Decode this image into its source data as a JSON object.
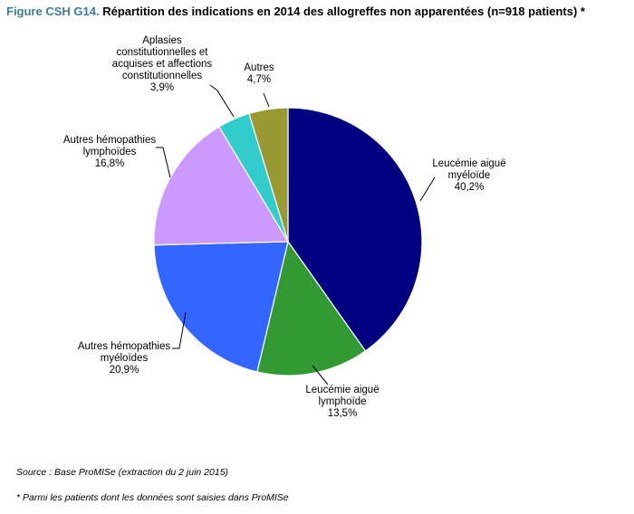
{
  "figure": {
    "title_prefix": "Figure CSH G14.",
    "title_main": "Répartition des indications en 2014 des allogreffes non apparentées (n=918 patients) *",
    "source": "Source : Base ProMISe (extraction du 2 juin 2015)",
    "note": "* Parmi les patients dont les données sont saisies dans ProMISe"
  },
  "chart_data": {
    "type": "pie",
    "start": "12 o'clock, clockwise",
    "slices": [
      {
        "lines": [
          "Leucémie aiguë",
          "myéloïde"
        ],
        "value_label": "40,2%",
        "value": 40.2,
        "color": "#000080"
      },
      {
        "lines": [
          "Leucémie aiguë",
          "lymphoïde"
        ],
        "value_label": "13,5%",
        "value": 13.5,
        "color": "#339933"
      },
      {
        "lines": [
          "Autres hémopathies",
          "myéloïdes"
        ],
        "value_label": "20,9%",
        "value": 20.9,
        "color": "#3366FF"
      },
      {
        "lines": [
          "Autres hémopathies",
          "lymphoïdes"
        ],
        "value_label": "16,8%",
        "value": 16.8,
        "color": "#CC99FF"
      },
      {
        "lines": [
          "Aplasies",
          "constitutionnelles et",
          "acquises et affections",
          "constitutionnelles"
        ],
        "value_label": "3,9%",
        "value": 3.9,
        "color": "#33CCCC"
      },
      {
        "lines": [
          "Autres"
        ],
        "value_label": "4,7%",
        "value": 4.7,
        "color": "#999933"
      }
    ]
  }
}
